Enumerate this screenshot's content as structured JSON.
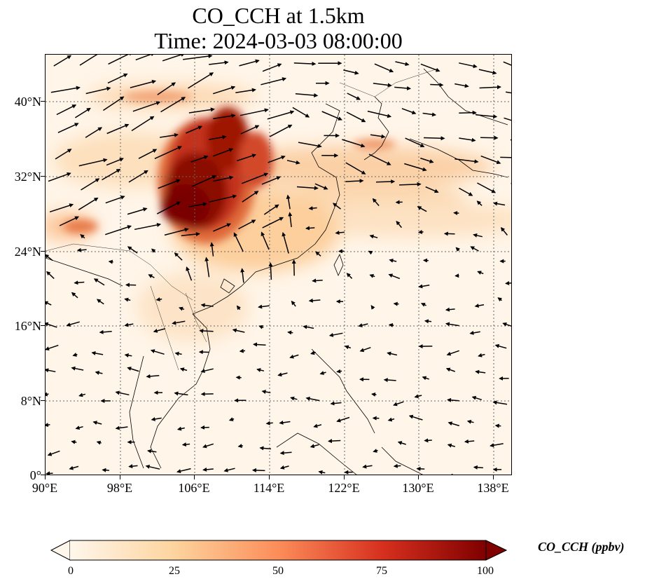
{
  "title": {
    "line1": "CO_CCH at 1.5km",
    "line2": "Time: 2024-03-03 08:00:00"
  },
  "map": {
    "lat_labels": [
      "40°N",
      "32°N",
      "24°N",
      "16°N",
      "8°N",
      "0°"
    ],
    "lon_labels": [
      "90°E",
      "98°E",
      "106°E",
      "114°E",
      "122°E",
      "130°E",
      "138°E"
    ],
    "extent": {
      "lon_min": 90,
      "lon_max": 140,
      "lat_min": 0,
      "lat_max": 45
    },
    "gridlines": "dotted gray",
    "features": [
      "coastlines",
      "country borders",
      "wind vectors",
      "CO_CCH concentration field"
    ]
  },
  "colorbar": {
    "label": "CO_CCH (ppbv)",
    "ticks": [
      "0",
      "25",
      "50",
      "75",
      "100"
    ],
    "range": [
      0,
      100
    ],
    "extend": "both",
    "colormap": "OrRd",
    "colors": [
      "#fff7ec",
      "#fdd49e",
      "#fc8d59",
      "#d7301f",
      "#7f0000"
    ]
  }
}
